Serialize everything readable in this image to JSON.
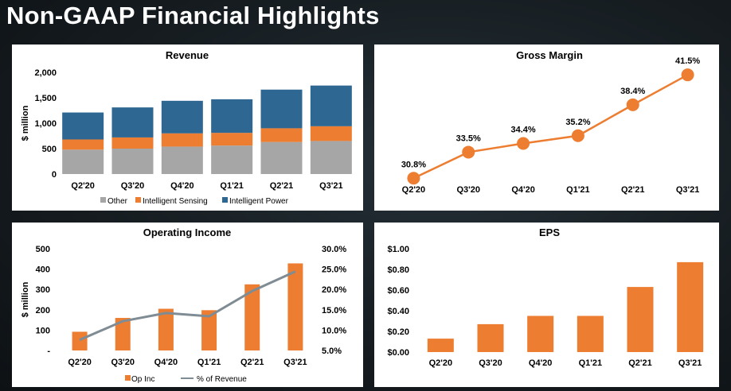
{
  "page_title": "Non-GAAP Financial Highlights",
  "colors": {
    "other": "#a6a6a6",
    "sensing": "#ed7d31",
    "power": "#2e6791",
    "op_line": "#7f8c94",
    "bar_orange": "#ed7d31"
  },
  "chart_data": [
    {
      "type": "bar",
      "stacked": true,
      "title": "Revenue",
      "ylabel": "$ million",
      "ylim": [
        0,
        2000
      ],
      "yticks": [
        "0",
        "500",
        "1,000",
        "1,500",
        "2,000"
      ],
      "yticks_values": [
        0,
        500,
        1000,
        1500,
        2000
      ],
      "categories": [
        "Q2'20",
        "Q3'20",
        "Q4'20",
        "Q1'21",
        "Q2'21",
        "Q3'21"
      ],
      "series": [
        {
          "name": "Other",
          "values": [
            480,
            500,
            540,
            560,
            630,
            650
          ]
        },
        {
          "name": "Intelligent Sensing",
          "values": [
            200,
            220,
            260,
            250,
            270,
            290
          ]
        },
        {
          "name": "Intelligent Power",
          "values": [
            530,
            590,
            640,
            660,
            760,
            800
          ]
        }
      ],
      "legend": "bottom"
    },
    {
      "type": "line",
      "title": "Gross Margin",
      "categories": [
        "Q2'20",
        "Q3'20",
        "Q4'20",
        "Q1'21",
        "Q2'21",
        "Q3'21"
      ],
      "values": [
        30.8,
        33.5,
        34.4,
        35.2,
        38.4,
        41.5
      ],
      "labels": [
        "30.8%",
        "33.5%",
        "34.4%",
        "35.2%",
        "38.4%",
        "41.5%"
      ],
      "ylim": [
        30,
        42.5
      ]
    },
    {
      "type": "bar",
      "title": "Operating Income",
      "ylabel": "$ million",
      "ylim": [
        0,
        500
      ],
      "yticks": [
        "-",
        "100",
        "200",
        "300",
        "400",
        "500"
      ],
      "yticks_values": [
        0,
        100,
        200,
        300,
        400,
        500
      ],
      "y2lim": [
        5,
        30
      ],
      "y2ticks": [
        "5.0%",
        "10.0%",
        "15.0%",
        "20.0%",
        "25.0%",
        "30.0%"
      ],
      "y2ticks_values": [
        5,
        10,
        15,
        20,
        25,
        30
      ],
      "categories": [
        "Q2'20",
        "Q3'20",
        "Q4'20",
        "Q1'21",
        "Q2'21",
        "Q3'21"
      ],
      "series": [
        {
          "name": "Op Inc",
          "values": [
            92,
            160,
            205,
            198,
            325,
            428
          ]
        },
        {
          "name": "% of Revenue",
          "values": [
            7.6,
            12.2,
            14.2,
            13.4,
            19.6,
            24.4
          ],
          "axis": "right"
        }
      ],
      "legend": "bottom"
    },
    {
      "type": "bar",
      "title": "EPS",
      "ylim": [
        0,
        1.0
      ],
      "yticks": [
        "$0.00",
        "$0.20",
        "$0.40",
        "$0.60",
        "$0.80",
        "$1.00"
      ],
      "yticks_values": [
        0,
        0.2,
        0.4,
        0.6,
        0.8,
        1.0
      ],
      "categories": [
        "Q2'20",
        "Q3'20",
        "Q4'20",
        "Q1'21",
        "Q2'21",
        "Q3'21"
      ],
      "values": [
        0.13,
        0.27,
        0.35,
        0.35,
        0.63,
        0.87
      ]
    }
  ]
}
